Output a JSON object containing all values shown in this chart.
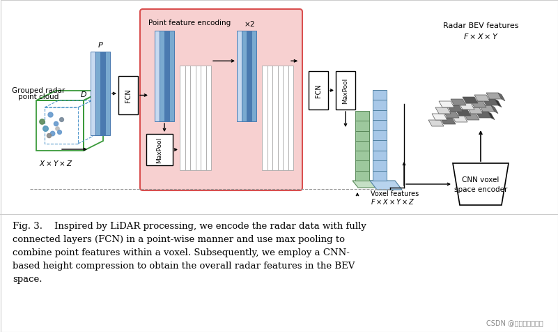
{
  "bg_color": "#ffffff",
  "fig_width": 8.01,
  "fig_height": 4.77,
  "blue_col_colors": [
    "#c8daf0",
    "#7aaad0",
    "#4a7ab0",
    "#7aaad0"
  ],
  "pink_bg": "#f7d0d0",
  "pink_border": "#d94f4f",
  "green_col": "#9dc89d",
  "green_ec": "#5a8a5a",
  "blue_vox": "#a8c8e8",
  "blue_vox_ec": "#5080a0",
  "watermark": "CSDN @明初哈都能学会",
  "caption_bold": "Fig. 3.",
  "caption_rest": "    Inspired by LiDAR processing, we encode the radar data with fully connected layers (FCN) in a point-wise manner and use max pooling to combine point features within a voxel. Subsequently, we employ a CNN-based height compression to obtain the overall radar features in the BEV space."
}
